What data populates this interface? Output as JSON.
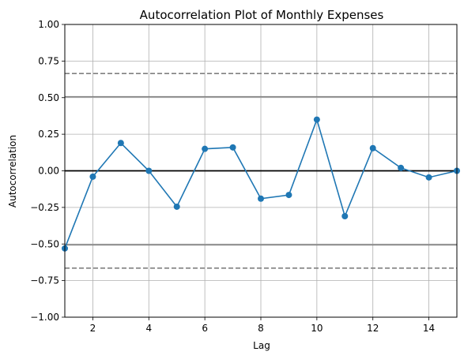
{
  "chart_data": {
    "type": "line",
    "title": "Autocorrelation Plot of Monthly Expenses",
    "xlabel": "Lag",
    "ylabel": "Autocorrelation",
    "xlim": [
      1,
      15
    ],
    "ylim": [
      -1.0,
      1.0
    ],
    "x_ticks": [
      2,
      4,
      6,
      8,
      10,
      12,
      14
    ],
    "x_tick_labels": [
      "2",
      "4",
      "6",
      "8",
      "10",
      "12",
      "14"
    ],
    "y_ticks": [
      -1.0,
      -0.75,
      -0.5,
      -0.25,
      0.0,
      0.25,
      0.5,
      0.75,
      1.0
    ],
    "y_tick_labels": [
      "−1.00",
      "−0.75",
      "−0.50",
      "−0.25",
      "0.00",
      "0.25",
      "0.50",
      "0.75",
      "1.00"
    ],
    "grid": true,
    "series": [
      {
        "x": [
          1,
          2,
          3,
          4,
          5,
          6,
          7,
          8,
          9,
          10,
          11,
          12,
          13,
          14,
          15
        ],
        "values": [
          -0.53,
          -0.04,
          0.19,
          0.0,
          -0.245,
          0.15,
          0.16,
          -0.19,
          -0.165,
          0.35,
          -0.31,
          0.155,
          0.02,
          -0.045,
          0.0
        ],
        "color": "#1f77b4"
      }
    ],
    "reference_lines": [
      {
        "y": 0.0,
        "style": "solid",
        "color": "#000000"
      },
      {
        "y": 0.506,
        "style": "solid",
        "color": "#808080"
      },
      {
        "y": -0.506,
        "style": "solid",
        "color": "#808080"
      },
      {
        "y": 0.665,
        "style": "dashed",
        "color": "#808080"
      },
      {
        "y": -0.665,
        "style": "dashed",
        "color": "#808080"
      }
    ]
  }
}
